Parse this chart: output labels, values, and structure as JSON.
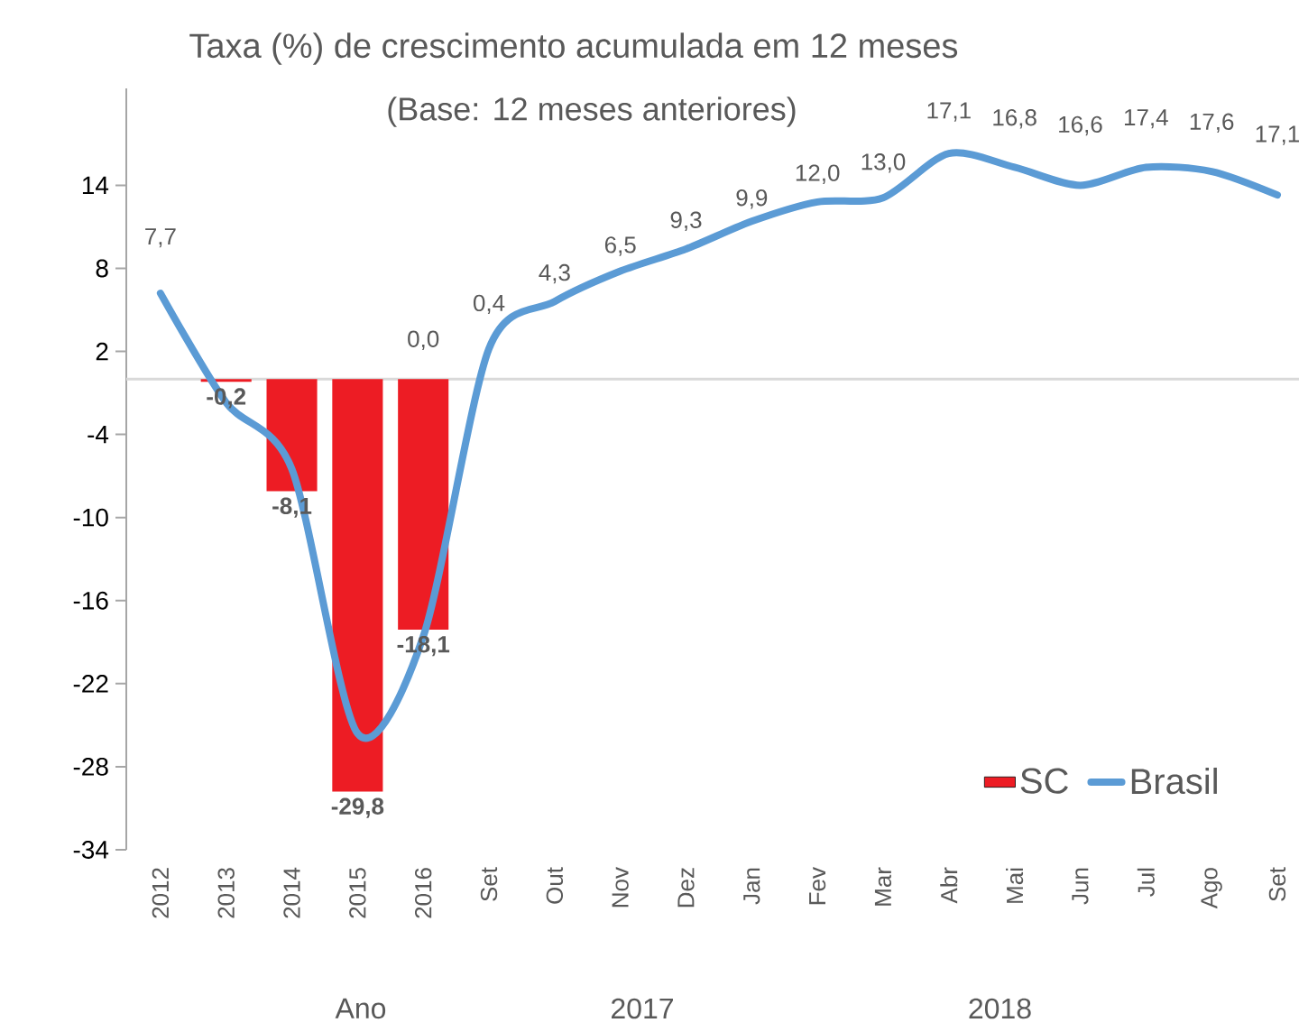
{
  "chart_data": {
    "type": "bar",
    "title": "Taxa (%) de crescimento acumulada em 12 meses",
    "subtitle": "(Base: 12 meses anteriores)",
    "categories": [
      "2012",
      "2013",
      "2014",
      "2015",
      "2016",
      "Set",
      "Out",
      "Nov",
      "Dez",
      "Jan",
      "Fev",
      "Mar",
      "Abr",
      "Mai",
      "Jun",
      "Jul",
      "Ago",
      "Set"
    ],
    "series": [
      {
        "name": "SC",
        "color": "#ed1c24",
        "values": [
          null,
          -0.2,
          -8.1,
          -29.8,
          -18.1,
          null,
          null,
          null,
          null,
          null,
          null,
          null,
          null,
          null,
          null,
          null,
          null,
          null
        ],
        "value_labels": [
          null,
          "-0,2",
          "-8,1",
          "-29,8",
          "-18,1",
          null,
          null,
          null,
          null,
          null,
          null,
          null,
          null,
          null,
          null,
          null,
          null,
          null
        ]
      },
      {
        "name": "Brasil",
        "type": "line",
        "color": "#5b9bd5",
        "values": [
          6.2,
          -1.7,
          -6.5,
          -25.6,
          -18.6,
          2.2,
          5.6,
          7.8,
          9.4,
          11.4,
          12.8,
          13.1,
          16.3,
          15.3,
          14.0,
          15.3,
          15.0,
          13.3
        ]
      }
    ],
    "ylim": [
      -34,
      21
    ],
    "yticks": [
      -34,
      -28,
      -22,
      -16,
      -10,
      -4,
      2,
      8,
      14
    ],
    "ref_lines": [
      {
        "axis": "y",
        "value": 0,
        "color": "#d9d9d9"
      }
    ],
    "legend": "bottom right",
    "marker": "none",
    "line_style": "solid",
    "grid": false,
    "annotations": [
      "7,7",
      "0,0",
      "0,4",
      "4,3",
      "6,5",
      "9,3",
      "9,9",
      "12,0",
      "13,0",
      "17,1",
      "16,8",
      "16,6",
      "17,4",
      "17,6",
      "17,1",
      "Ano",
      "2017",
      "2018"
    ]
  }
}
